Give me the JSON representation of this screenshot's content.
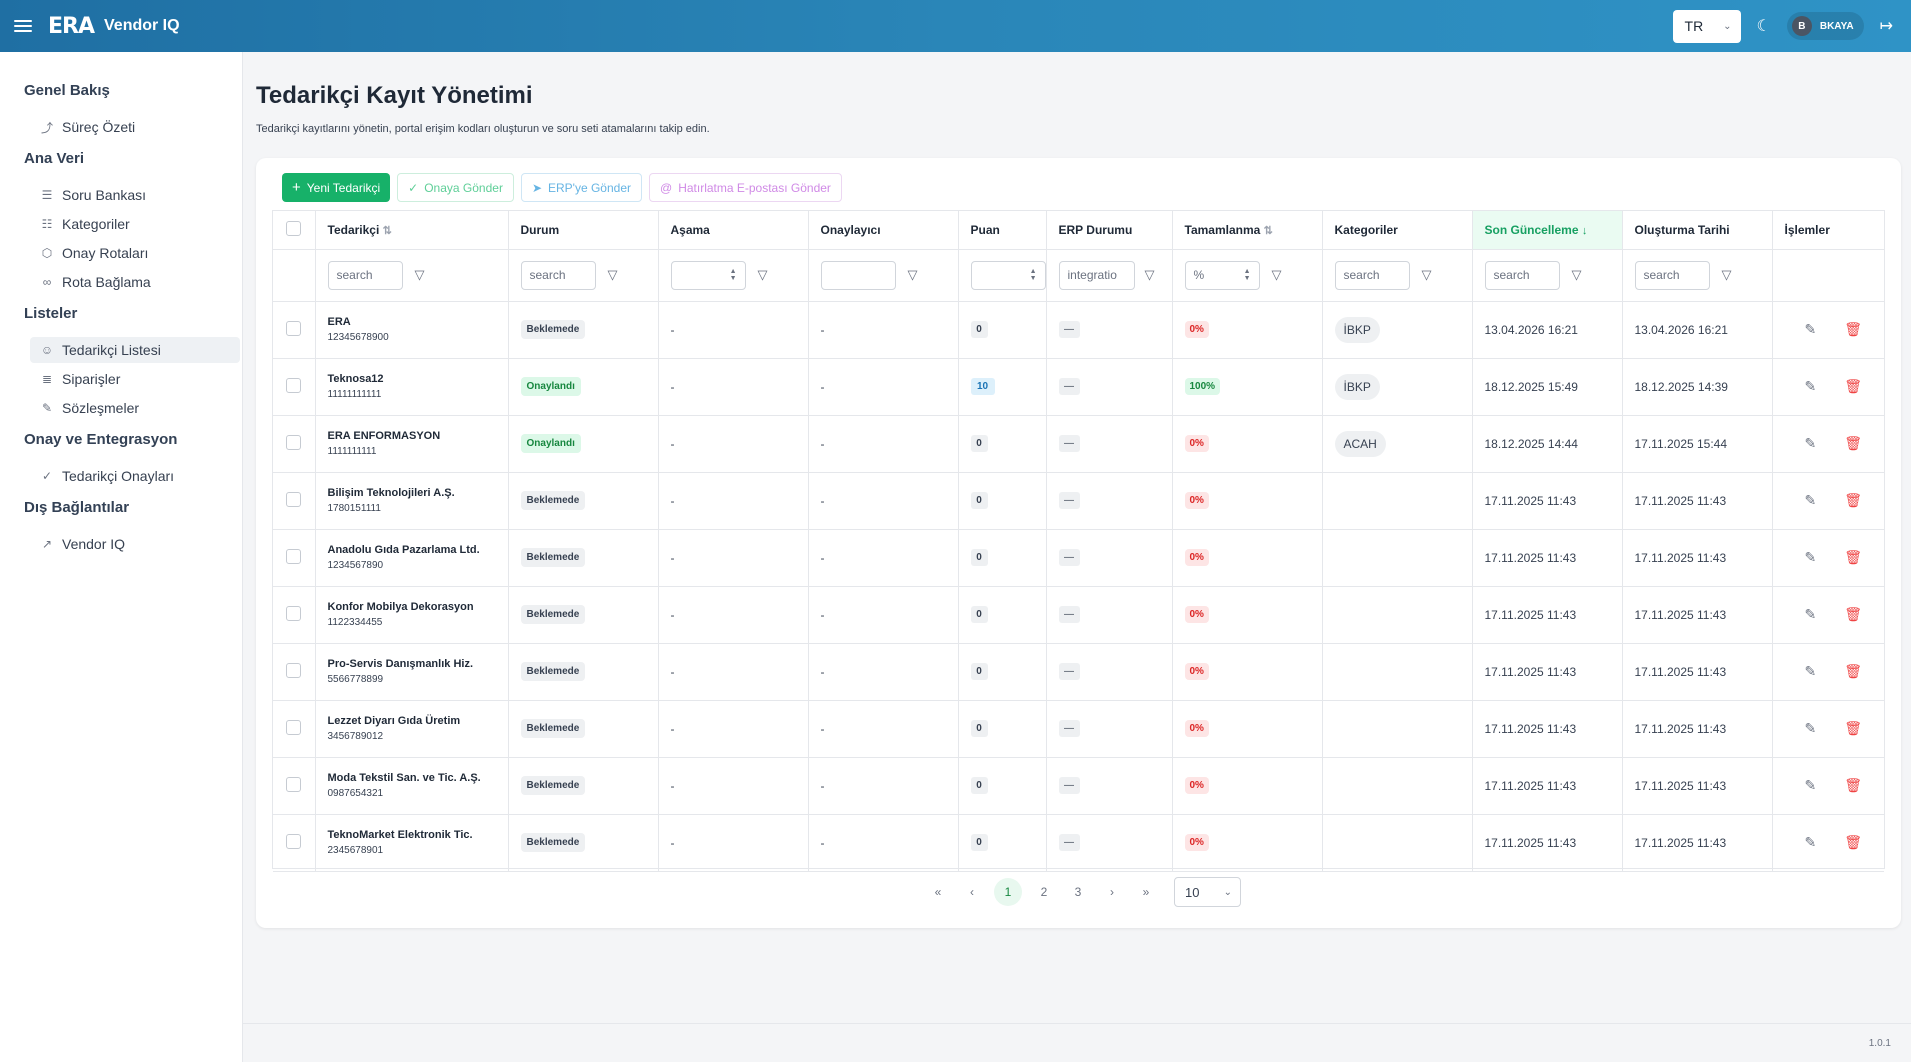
{
  "header": {
    "logo": "ERA",
    "app_title": "Vendor IQ",
    "lang": "TR",
    "user_initial": "B",
    "user_name": "BKAYA"
  },
  "sidebar": {
    "groups": [
      {
        "title": "Genel Bakış",
        "items": [
          {
            "label": "Süreç Özeti",
            "icon": "chart-line-icon"
          }
        ]
      },
      {
        "title": "Ana Veri",
        "items": [
          {
            "label": "Soru Bankası",
            "icon": "database-icon"
          },
          {
            "label": "Kategoriler",
            "icon": "hierarchy-icon"
          },
          {
            "label": "Onay Rotaları",
            "icon": "route-icon"
          },
          {
            "label": "Rota Bağlama",
            "icon": "link-icon"
          }
        ]
      },
      {
        "title": "Listeler",
        "items": [
          {
            "label": "Tedarikçi Listesi",
            "icon": "users-icon",
            "active": true
          },
          {
            "label": "Siparişler",
            "icon": "file-list-icon"
          },
          {
            "label": "Sözleşmeler",
            "icon": "file-edit-icon"
          }
        ]
      },
      {
        "title": "Onay ve Entegrasyon",
        "items": [
          {
            "label": "Tedarikçi Onayları",
            "icon": "check-circle-icon"
          }
        ]
      },
      {
        "title": "Dış Bağlantılar",
        "items": [
          {
            "label": "Vendor IQ",
            "icon": "external-link-icon"
          }
        ]
      }
    ]
  },
  "page": {
    "title": "Tedarikçi Kayıt Yönetimi",
    "subtitle": "Tedarikçi kayıtlarını yönetin, portal erişim kodları oluşturun ve soru seti atamalarını takip edin."
  },
  "toolbar": {
    "new_supplier": "Yeni Tedarikçi",
    "send_approval": "Onaya Gönder",
    "send_erp": "ERP'ye Gönder",
    "reminder": "Hatırlatma E-postası Gönder"
  },
  "table": {
    "headers": {
      "supplier": "Tedarikçi",
      "status": "Durum",
      "stage": "Aşama",
      "approver": "Onaylayıcı",
      "score": "Puan",
      "erp": "ERP Durumu",
      "completion": "Tamamlanma",
      "categories": "Kategoriler",
      "updated": "Son Güncelleme",
      "created": "Oluşturma Tarihi",
      "actions": "İşlemler"
    },
    "filters": {
      "search": "search",
      "erp_value": "integratio",
      "pct": "%"
    },
    "rows": [
      {
        "name": "ERA",
        "code": "12345678900",
        "status": "Beklemede",
        "status_type": "wait",
        "stage": "-",
        "approver": "-",
        "score": "0",
        "erp": "—",
        "completion": "0%",
        "category": "İBKP",
        "updated": "13.04.2026 16:21",
        "created": "13.04.2026 16:21"
      },
      {
        "name": "Teknosa12",
        "code": "11111111111",
        "status": "Onaylandı",
        "status_type": "ok",
        "stage": "-",
        "approver": "-",
        "score": "10",
        "erp": "—",
        "completion": "100%",
        "category": "İBKP",
        "updated": "18.12.2025 15:49",
        "created": "18.12.2025 14:39"
      },
      {
        "name": "ERA ENFORMASYON",
        "code": "1111111111",
        "status": "Onaylandı",
        "status_type": "ok",
        "stage": "-",
        "approver": "-",
        "score": "0",
        "erp": "—",
        "completion": "0%",
        "category": "ACAH",
        "updated": "18.12.2025 14:44",
        "created": "17.11.2025 15:44"
      },
      {
        "name": "Bilişim Teknolojileri A.Ş.",
        "code": "1780151111",
        "status": "Beklemede",
        "status_type": "wait",
        "stage": "-",
        "approver": "-",
        "score": "0",
        "erp": "—",
        "completion": "0%",
        "category": "",
        "updated": "17.11.2025 11:43",
        "created": "17.11.2025 11:43"
      },
      {
        "name": "Anadolu Gıda Pazarlama Ltd.",
        "code": "1234567890",
        "status": "Beklemede",
        "status_type": "wait",
        "stage": "-",
        "approver": "-",
        "score": "0",
        "erp": "—",
        "completion": "0%",
        "category": "",
        "updated": "17.11.2025 11:43",
        "created": "17.11.2025 11:43"
      },
      {
        "name": "Konfor Mobilya Dekorasyon",
        "code": "1122334455",
        "status": "Beklemede",
        "status_type": "wait",
        "stage": "-",
        "approver": "-",
        "score": "0",
        "erp": "—",
        "completion": "0%",
        "category": "",
        "updated": "17.11.2025 11:43",
        "created": "17.11.2025 11:43"
      },
      {
        "name": "Pro-Servis Danışmanlık Hiz.",
        "code": "5566778899",
        "status": "Beklemede",
        "status_type": "wait",
        "stage": "-",
        "approver": "-",
        "score": "0",
        "erp": "—",
        "completion": "0%",
        "category": "",
        "updated": "17.11.2025 11:43",
        "created": "17.11.2025 11:43"
      },
      {
        "name": "Lezzet Diyarı Gıda Üretim",
        "code": "3456789012",
        "status": "Beklemede",
        "status_type": "wait",
        "stage": "-",
        "approver": "-",
        "score": "0",
        "erp": "—",
        "completion": "0%",
        "category": "",
        "updated": "17.11.2025 11:43",
        "created": "17.11.2025 11:43"
      },
      {
        "name": "Moda Tekstil San. ve Tic. A.Ş.",
        "code": "0987654321",
        "status": "Beklemede",
        "status_type": "wait",
        "stage": "-",
        "approver": "-",
        "score": "0",
        "erp": "—",
        "completion": "0%",
        "category": "",
        "updated": "17.11.2025 11:43",
        "created": "17.11.2025 11:43"
      },
      {
        "name": "TeknoMarket Elektronik Tic.",
        "code": "2345678901",
        "status": "Beklemede",
        "status_type": "wait",
        "stage": "-",
        "approver": "-",
        "score": "0",
        "erp": "—",
        "completion": "0%",
        "category": "",
        "updated": "17.11.2025 11:43",
        "created": "17.11.2025 11:43"
      }
    ]
  },
  "pagination": {
    "first": "«",
    "prev": "‹",
    "pages": [
      "1",
      "2",
      "3"
    ],
    "current": "1",
    "next": "›",
    "last": "»",
    "per_page": "10"
  },
  "footer": {
    "version": "1.0.1"
  },
  "colors": {
    "primary": "#17b169",
    "header": "#2a86b8",
    "danger": "#ef4444"
  }
}
